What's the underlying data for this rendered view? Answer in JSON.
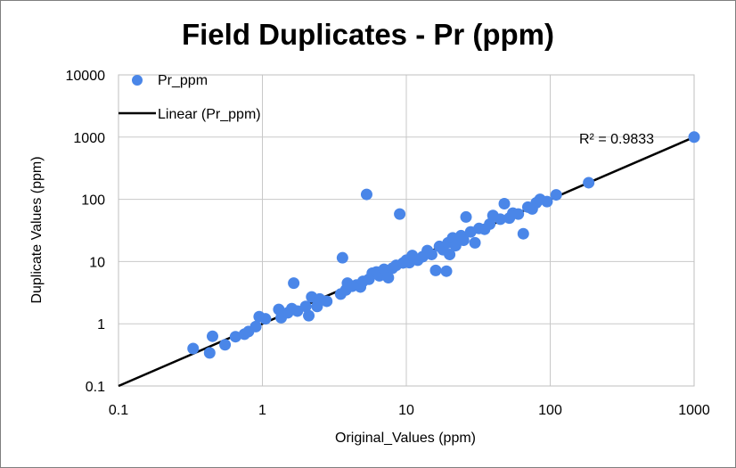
{
  "chart_data": {
    "type": "scatter",
    "title": "Field Duplicates  - Pr (ppm)",
    "xlabel": "Original_Values (ppm)",
    "ylabel": "Duplicate Values (ppm)",
    "x_scale": "log",
    "y_scale": "log",
    "xlim": [
      0.1,
      1000
    ],
    "ylim": [
      0.1,
      10000
    ],
    "x_ticks": [
      "0.1",
      "1",
      "10",
      "100",
      "1000"
    ],
    "y_ticks": [
      "0.1",
      "1",
      "10",
      "100",
      "1000",
      "10000"
    ],
    "grid": true,
    "legend_position": "top-left",
    "legend": [
      "Pr_ppm",
      "Linear (Pr_ppm)"
    ],
    "annotation": "R² = 0.9833",
    "colors": {
      "points": "#4a86e8",
      "trendline": "#000000",
      "grid": "#c8c8c8"
    },
    "series": [
      {
        "name": "Pr_ppm",
        "kind": "scatter",
        "points": [
          [
            0.33,
            0.4
          ],
          [
            0.43,
            0.34
          ],
          [
            0.45,
            0.63
          ],
          [
            0.55,
            0.46
          ],
          [
            0.65,
            0.62
          ],
          [
            0.75,
            0.68
          ],
          [
            0.8,
            0.75
          ],
          [
            0.9,
            0.9
          ],
          [
            0.95,
            1.3
          ],
          [
            1.05,
            1.2
          ],
          [
            1.3,
            1.7
          ],
          [
            1.35,
            1.25
          ],
          [
            1.5,
            1.5
          ],
          [
            1.6,
            1.75
          ],
          [
            1.65,
            4.5
          ],
          [
            1.75,
            1.6
          ],
          [
            2.0,
            1.9
          ],
          [
            2.1,
            1.35
          ],
          [
            2.2,
            2.7
          ],
          [
            2.4,
            1.9
          ],
          [
            2.5,
            2.5
          ],
          [
            2.8,
            2.3
          ],
          [
            3.5,
            3.0
          ],
          [
            3.6,
            11.5
          ],
          [
            3.8,
            3.5
          ],
          [
            3.9,
            4.5
          ],
          [
            4.2,
            4.0
          ],
          [
            4.5,
            4.2
          ],
          [
            4.8,
            3.9
          ],
          [
            5.0,
            4.8
          ],
          [
            5.3,
            120
          ],
          [
            5.5,
            5.2
          ],
          [
            5.8,
            6.5
          ],
          [
            6.2,
            6.8
          ],
          [
            6.5,
            5.9
          ],
          [
            7.0,
            7.5
          ],
          [
            7.5,
            5.5
          ],
          [
            8.0,
            7.8
          ],
          [
            8.5,
            8.7
          ],
          [
            9.0,
            58
          ],
          [
            9.5,
            9.5
          ],
          [
            10.0,
            10.5
          ],
          [
            10.5,
            9.6
          ],
          [
            11.0,
            12.5
          ],
          [
            12.0,
            10.5
          ],
          [
            13.0,
            12.0
          ],
          [
            14.0,
            15.0
          ],
          [
            15.0,
            13.0
          ],
          [
            16.0,
            7.2
          ],
          [
            17.0,
            17.5
          ],
          [
            18.0,
            15.5
          ],
          [
            19.0,
            7.0
          ],
          [
            19.5,
            20.0
          ],
          [
            20.0,
            13.0
          ],
          [
            21.0,
            24.0
          ],
          [
            22.0,
            18.0
          ],
          [
            24.0,
            26.0
          ],
          [
            25.0,
            22.0
          ],
          [
            26.0,
            52.0
          ],
          [
            28.0,
            30.0
          ],
          [
            30.0,
            20.0
          ],
          [
            32.0,
            34.0
          ],
          [
            35.0,
            33.0
          ],
          [
            38.0,
            40.0
          ],
          [
            40.0,
            55.0
          ],
          [
            45.0,
            48.0
          ],
          [
            48.0,
            85.0
          ],
          [
            52.0,
            50.0
          ],
          [
            55.0,
            60.0
          ],
          [
            60.0,
            58.0
          ],
          [
            65.0,
            28.0
          ],
          [
            70.0,
            75.0
          ],
          [
            75.0,
            70.0
          ],
          [
            80.0,
            88.0
          ],
          [
            85.0,
            100.0
          ],
          [
            95.0,
            92.0
          ],
          [
            110.0,
            118.0
          ],
          [
            185.0,
            185.0
          ],
          [
            1000.0,
            1000.0
          ]
        ]
      },
      {
        "name": "Linear (Pr_ppm)",
        "kind": "trendline",
        "points": [
          [
            0.1,
            0.1
          ],
          [
            1000,
            1000
          ]
        ]
      }
    ]
  }
}
